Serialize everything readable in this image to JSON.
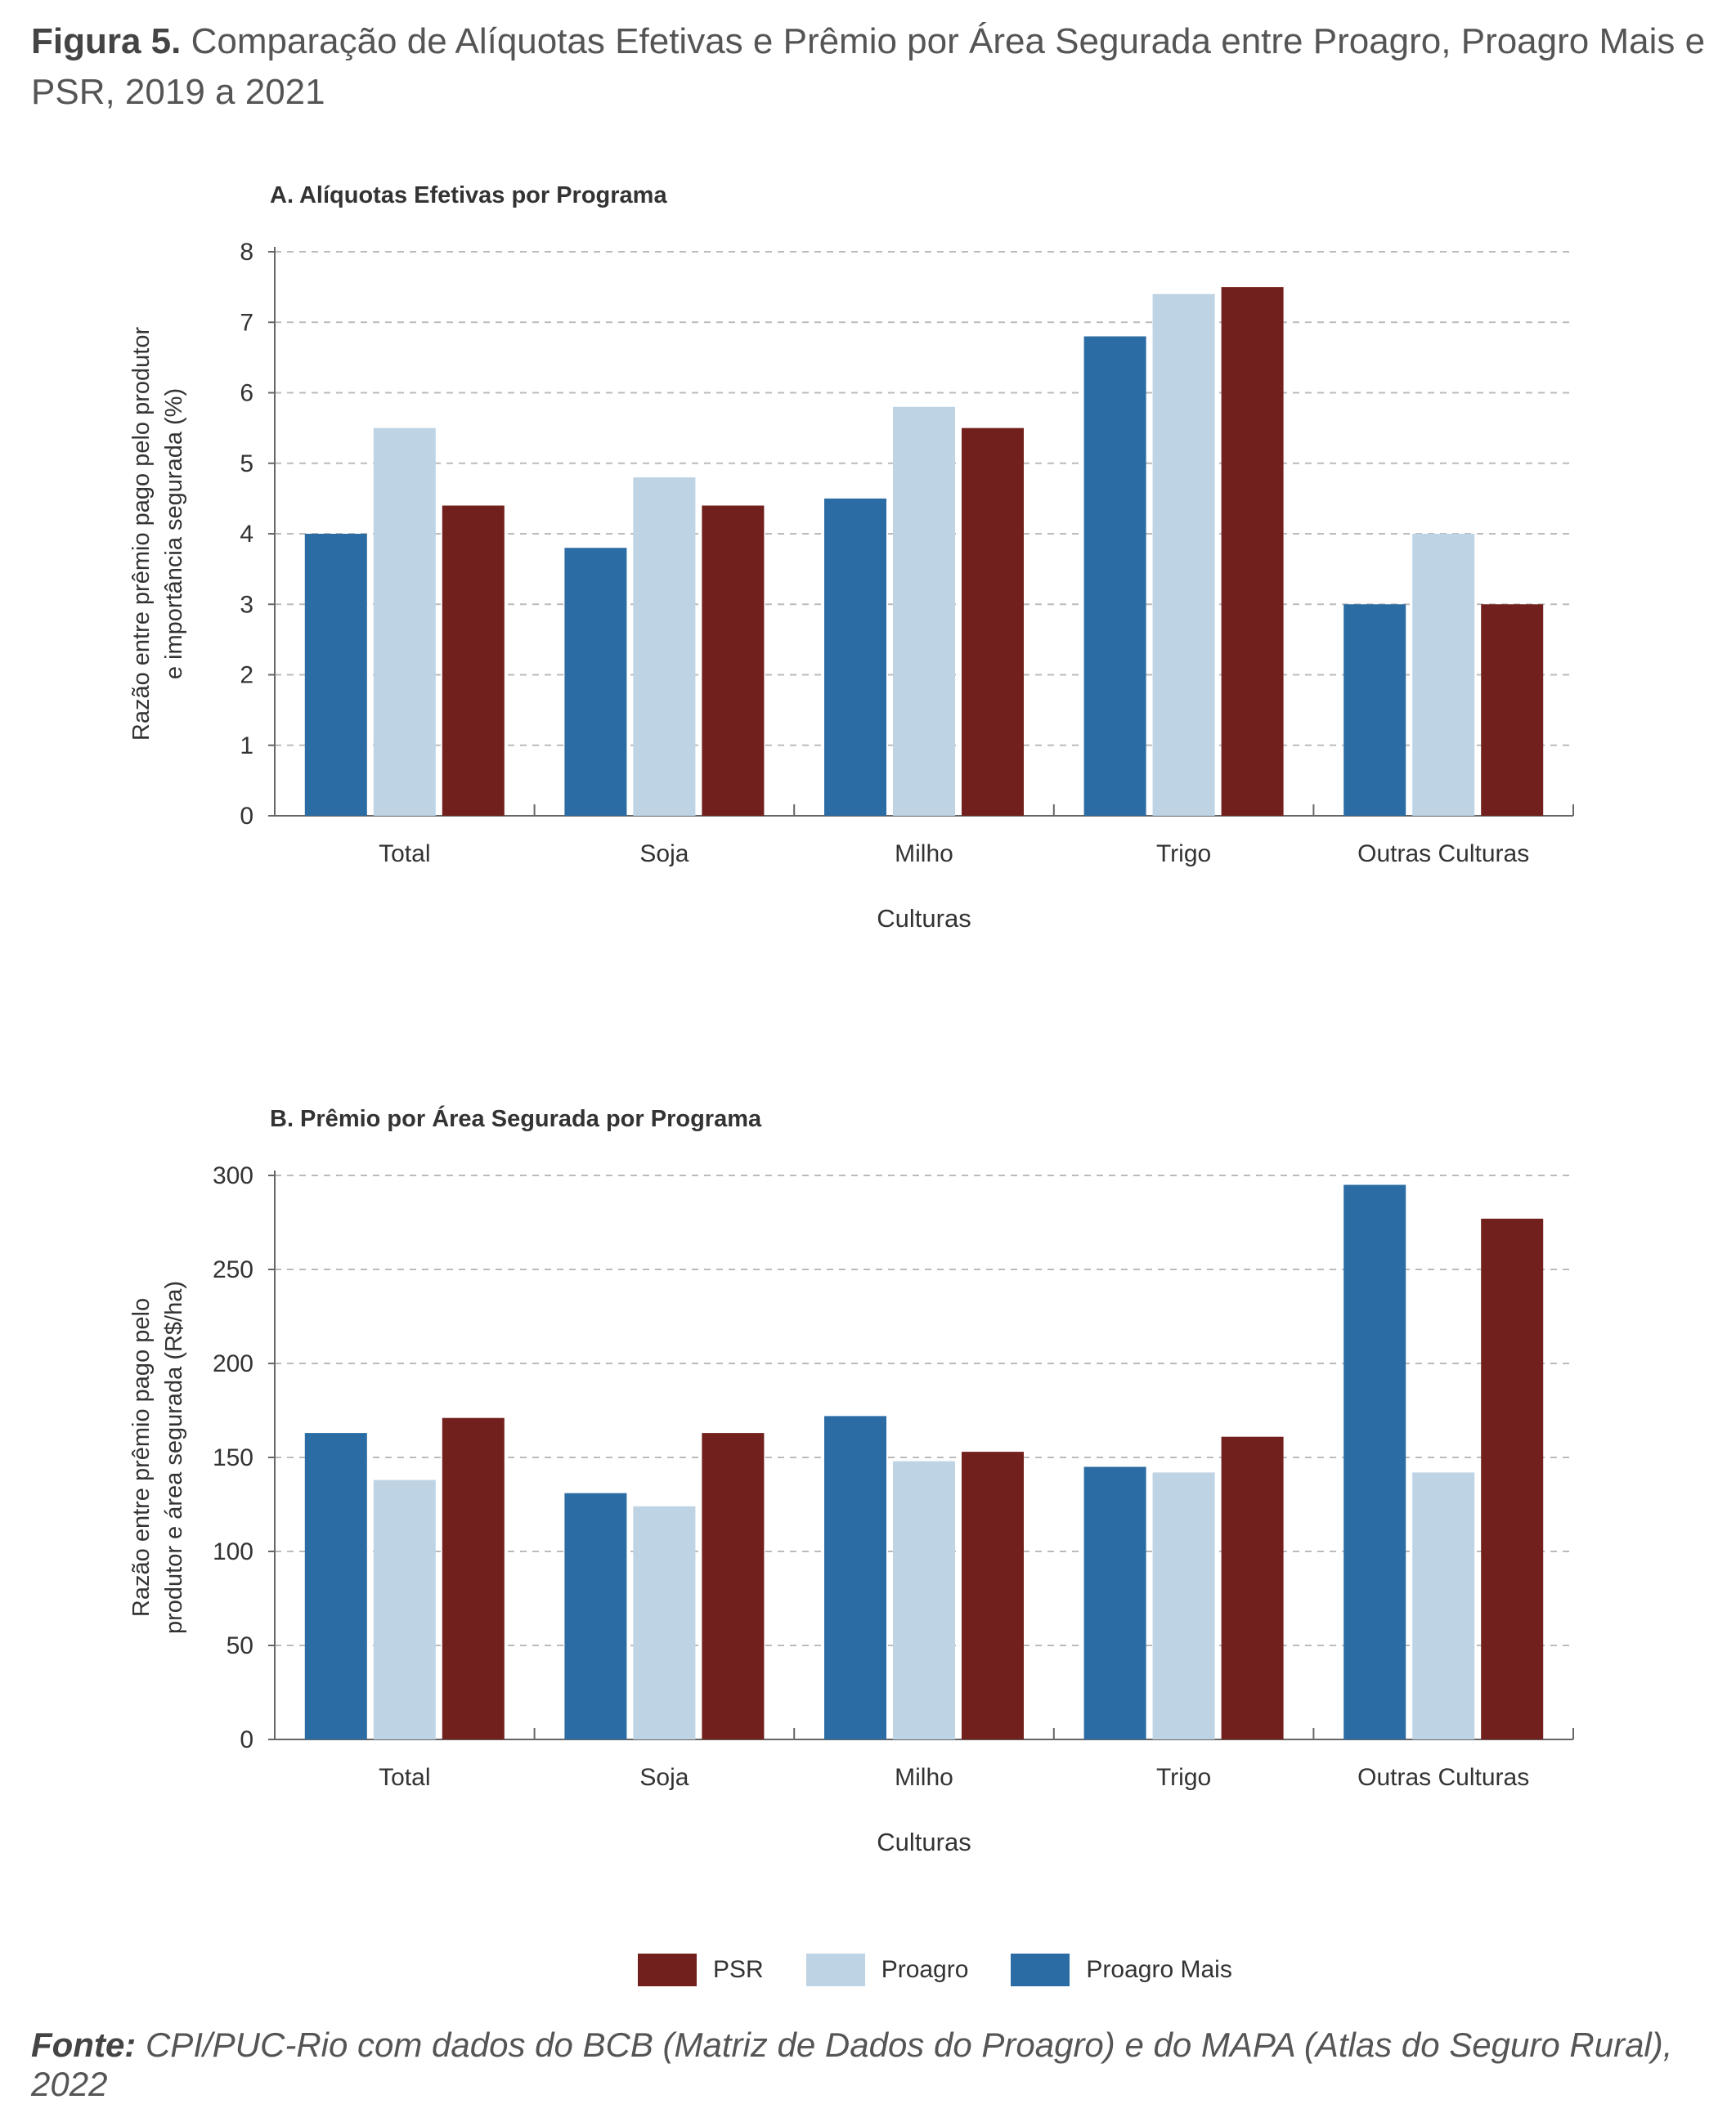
{
  "figure": {
    "label": "Figura 5.",
    "title": "Comparação de Alíquotas Efetivas e Prêmio por Área Segurada entre Proagro, Proagro Mais e PSR, 2019 a 2021"
  },
  "chart_data": [
    {
      "type": "bar",
      "title": "A. Alíquotas Efetivas por Programa",
      "xlabel": "Culturas",
      "ylabel_lines": [
        "Razão entre prêmio pago pelo produtor",
        "e importância segurada (%)"
      ],
      "categories": [
        "Total",
        "Soja",
        "Milho",
        "Trigo",
        "Outras Culturas"
      ],
      "ylim": [
        0,
        8
      ],
      "yticks": [
        0,
        1,
        2,
        3,
        4,
        5,
        6,
        7,
        8
      ],
      "grid": true,
      "series": [
        {
          "name": "Proagro Mais",
          "color": "#2a6ca3",
          "values": [
            4.0,
            3.8,
            4.5,
            6.8,
            3.0
          ]
        },
        {
          "name": "Proagro",
          "color": "#bed3e4",
          "values": [
            5.5,
            4.8,
            5.8,
            7.4,
            4.0
          ]
        },
        {
          "name": "PSR",
          "color": "#72201d",
          "values": [
            4.4,
            4.4,
            5.5,
            7.5,
            3.0
          ]
        }
      ]
    },
    {
      "type": "bar",
      "title": "B. Prêmio por Área Segurada por Programa",
      "xlabel": "Culturas",
      "ylabel_lines": [
        "Razão entre prêmio pago pelo",
        "produtor e área segurada (R$/ha)"
      ],
      "categories": [
        "Total",
        "Soja",
        "Milho",
        "Trigo",
        "Outras Culturas"
      ],
      "ylim": [
        0,
        300
      ],
      "yticks": [
        0,
        50,
        100,
        150,
        200,
        250,
        300
      ],
      "grid": true,
      "series": [
        {
          "name": "Proagro Mais",
          "color": "#2a6ca3",
          "values": [
            163,
            131,
            172,
            145,
            295
          ]
        },
        {
          "name": "Proagro",
          "color": "#bed3e4",
          "values": [
            138,
            124,
            148,
            142,
            142
          ]
        },
        {
          "name": "PSR",
          "color": "#72201d",
          "values": [
            171,
            163,
            153,
            161,
            277
          ]
        }
      ]
    }
  ],
  "legend": [
    {
      "label": "PSR",
      "color": "#72201d"
    },
    {
      "label": "Proagro",
      "color": "#bed3e4"
    },
    {
      "label": "Proagro Mais",
      "color": "#2a6ca3"
    }
  ],
  "source": {
    "label": "Fonte:",
    "text": "CPI/PUC-Rio com dados do BCB (Matriz de Dados do Proagro) e do MAPA (Atlas do Seguro Rural), 2022"
  }
}
